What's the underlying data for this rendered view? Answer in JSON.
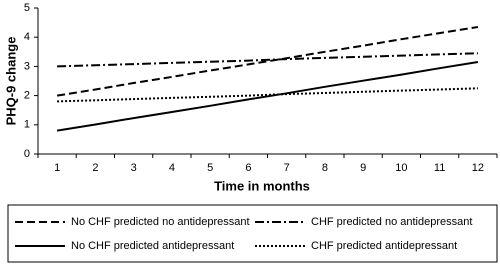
{
  "chart_data": {
    "type": "line",
    "y_label": "PHQ-9 change",
    "x_label": "Time in months",
    "categories": [
      "1",
      "2",
      "3",
      "4",
      "5",
      "6",
      "7",
      "8",
      "9",
      "10",
      "11",
      "12"
    ],
    "ylim": [
      0,
      5
    ],
    "yticks": [
      0,
      1,
      2,
      3,
      4,
      5
    ],
    "grid": false,
    "legend": "bottom",
    "series": [
      {
        "name": "No CHF predicted no antidepressant",
        "color": "#000000",
        "dash": "dashed",
        "values": [
          2.0,
          2.21,
          2.43,
          2.64,
          2.86,
          3.07,
          3.28,
          3.5,
          3.71,
          3.93,
          4.14,
          4.35
        ]
      },
      {
        "name": "CHF predicted no antidepressant",
        "color": "#000000",
        "dash": "dashdot",
        "values": [
          3.0,
          3.04,
          3.08,
          3.12,
          3.16,
          3.2,
          3.25,
          3.29,
          3.33,
          3.37,
          3.41,
          3.45
        ]
      },
      {
        "name": "No CHF predicted antidepressant",
        "color": "#000000",
        "dash": "solid",
        "values": [
          0.8,
          1.01,
          1.23,
          1.44,
          1.65,
          1.87,
          2.08,
          2.3,
          2.51,
          2.72,
          2.94,
          3.15
        ]
      },
      {
        "name": "CHF predicted antidepressant",
        "color": "#000000",
        "dash": "dotted",
        "values": [
          1.8,
          1.84,
          1.88,
          1.92,
          1.96,
          2.0,
          2.05,
          2.09,
          2.13,
          2.17,
          2.21,
          2.25
        ]
      }
    ]
  }
}
